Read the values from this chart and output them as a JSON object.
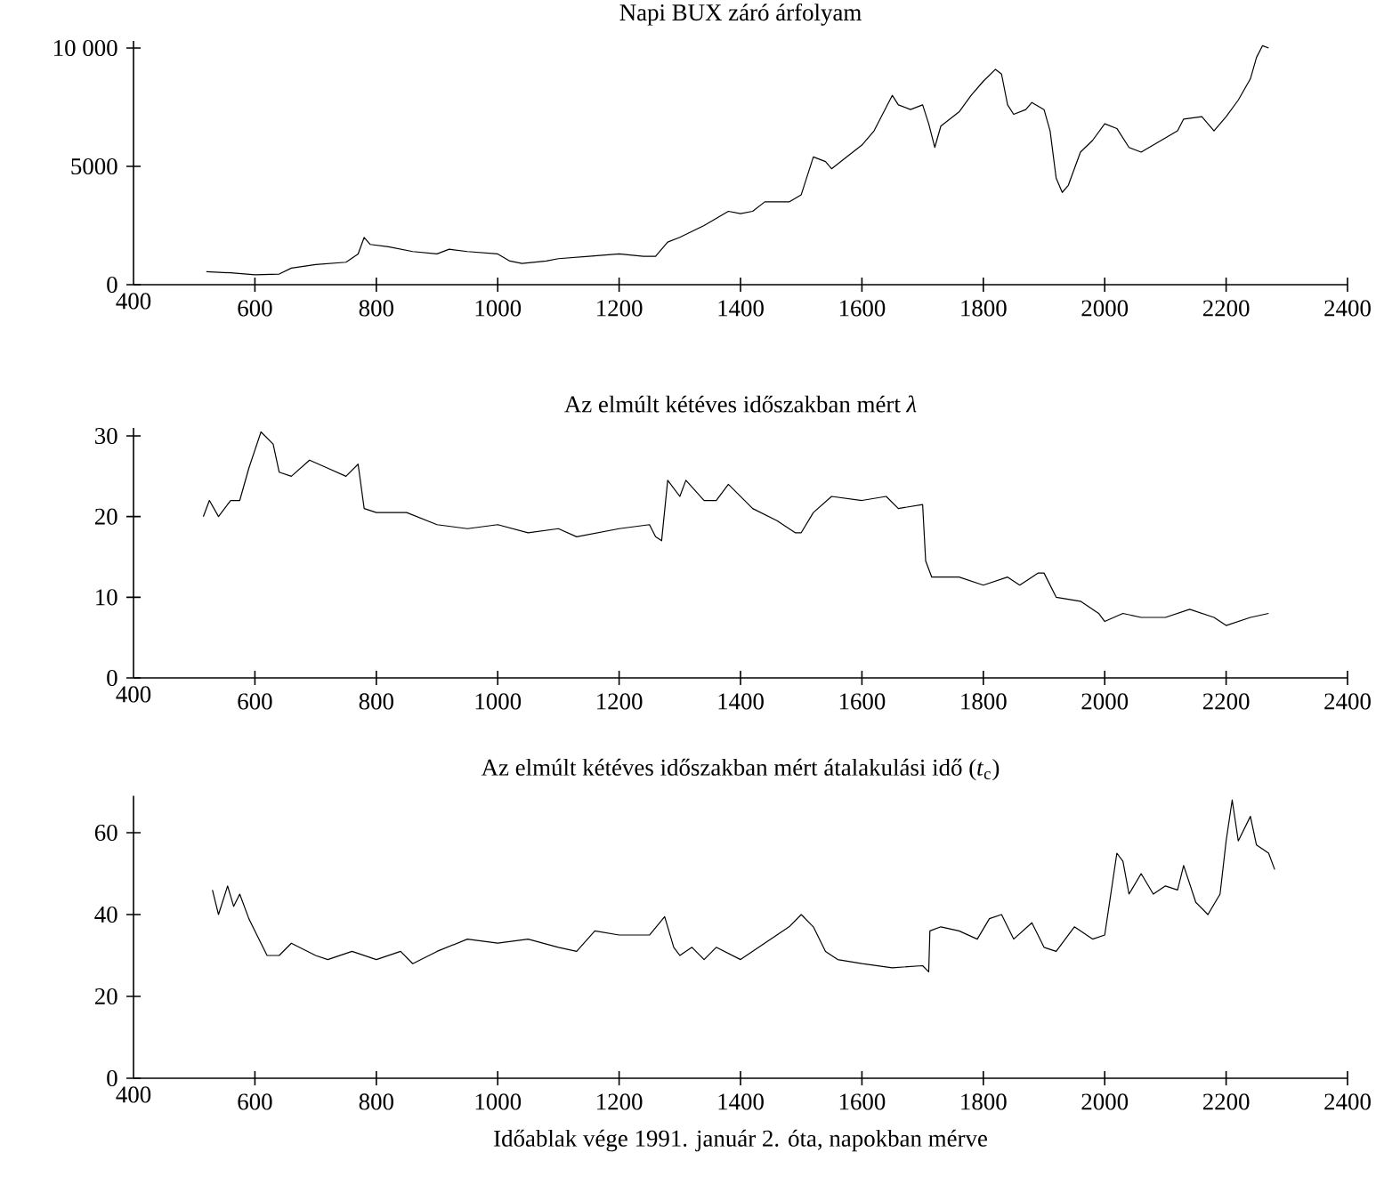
{
  "chart_data": [
    {
      "type": "line",
      "title": "Napi BUX záró árfolyam",
      "xlim": [
        400,
        2400
      ],
      "xticks": [
        400,
        600,
        800,
        1000,
        1200,
        1400,
        1600,
        1800,
        2000,
        2200,
        2400
      ],
      "ylim": [
        0,
        10300
      ],
      "yticks": [
        0,
        5000,
        {
          "value": 10000,
          "label": "10 000"
        }
      ],
      "series": [
        {
          "color": "#000000",
          "x": [
            520,
            560,
            600,
            640,
            660,
            700,
            750,
            770,
            780,
            790,
            820,
            860,
            900,
            920,
            950,
            1000,
            1020,
            1040,
            1080,
            1100,
            1150,
            1200,
            1240,
            1260,
            1280,
            1300,
            1340,
            1360,
            1380,
            1400,
            1420,
            1440,
            1480,
            1500,
            1510,
            1520,
            1540,
            1550,
            1570,
            1600,
            1620,
            1650,
            1660,
            1680,
            1700,
            1710,
            1720,
            1730,
            1760,
            1780,
            1800,
            1820,
            1830,
            1840,
            1850,
            1870,
            1880,
            1900,
            1910,
            1920,
            1930,
            1940,
            1960,
            1980,
            2000,
            2020,
            2040,
            2060,
            2080,
            2100,
            2120,
            2130,
            2160,
            2180,
            2200,
            2220,
            2240,
            2250,
            2260,
            2270
          ],
          "values": [
            550,
            500,
            420,
            450,
            700,
            850,
            950,
            1300,
            2000,
            1700,
            1600,
            1400,
            1300,
            1500,
            1400,
            1300,
            1000,
            900,
            1000,
            1100,
            1200,
            1300,
            1200,
            1200,
            1800,
            2000,
            2500,
            2800,
            3100,
            3000,
            3100,
            3500,
            3500,
            3800,
            4600,
            5400,
            5200,
            4900,
            5300,
            5900,
            6500,
            8000,
            7600,
            7400,
            7600,
            6800,
            5800,
            6700,
            7300,
            8000,
            8600,
            9100,
            8900,
            7600,
            7200,
            7400,
            7700,
            7400,
            6500,
            4500,
            3900,
            4200,
            5600,
            6100,
            6800,
            6600,
            5800,
            5600,
            5900,
            6200,
            6500,
            7000,
            7100,
            6500,
            7100,
            7800,
            8700,
            9600,
            10100,
            10000
          ]
        }
      ]
    },
    {
      "type": "line",
      "title": "Az elmúlt kétéves időszakban mért *λ*",
      "xlim": [
        400,
        2400
      ],
      "xticks": [
        400,
        600,
        800,
        1000,
        1200,
        1400,
        1600,
        1800,
        2000,
        2200,
        2400
      ],
      "ylim": [
        0,
        31
      ],
      "yticks": [
        0,
        10,
        20,
        30
      ],
      "series": [
        {
          "color": "#000000",
          "x": [
            515,
            525,
            540,
            560,
            575,
            590,
            610,
            630,
            640,
            660,
            690,
            720,
            750,
            770,
            780,
            800,
            850,
            900,
            950,
            1000,
            1050,
            1100,
            1130,
            1200,
            1250,
            1260,
            1270,
            1280,
            1300,
            1310,
            1340,
            1360,
            1380,
            1400,
            1420,
            1460,
            1490,
            1500,
            1520,
            1550,
            1600,
            1640,
            1660,
            1700,
            1705,
            1715,
            1760,
            1800,
            1840,
            1860,
            1890,
            1900,
            1920,
            1960,
            1990,
            2000,
            2030,
            2060,
            2100,
            2140,
            2180,
            2200,
            2240,
            2270
          ],
          "values": [
            20,
            22,
            20,
            22,
            22,
            26,
            30.5,
            29,
            25.5,
            25,
            27,
            26,
            25,
            26.5,
            21,
            20.5,
            20.5,
            19,
            18.5,
            19,
            18,
            18.5,
            17.5,
            18.5,
            19,
            17.5,
            17,
            24.5,
            22.5,
            24.5,
            22,
            22,
            24,
            22.5,
            21,
            19.5,
            18,
            18,
            20.5,
            22.5,
            22,
            22.5,
            21,
            21.5,
            14.5,
            12.5,
            12.5,
            11.5,
            12.5,
            11.5,
            13,
            13,
            10,
            9.5,
            8,
            7,
            8,
            7.5,
            7.5,
            8.5,
            7.5,
            6.5,
            7.5,
            8
          ]
        }
      ]
    },
    {
      "type": "line",
      "title": "Az elmúlt kétéves időszakban mért átalakulási idő (*t*$_{c}$)",
      "xlabel": "Időablak vége 1991. január 2. óta, napokban mérve",
      "xlim": [
        400,
        2400
      ],
      "xticks": [
        400,
        600,
        800,
        1000,
        1200,
        1400,
        1600,
        1800,
        2000,
        2200,
        2400
      ],
      "ylim": [
        0,
        69
      ],
      "yticks": [
        0,
        20,
        40,
        60
      ],
      "series": [
        {
          "color": "#000000",
          "x": [
            530,
            540,
            555,
            565,
            575,
            590,
            600,
            620,
            640,
            660,
            700,
            720,
            760,
            800,
            840,
            860,
            900,
            950,
            1000,
            1050,
            1100,
            1130,
            1160,
            1200,
            1250,
            1275,
            1290,
            1300,
            1320,
            1340,
            1360,
            1400,
            1440,
            1480,
            1500,
            1520,
            1540,
            1560,
            1600,
            1650,
            1700,
            1710,
            1712,
            1730,
            1760,
            1790,
            1810,
            1830,
            1850,
            1880,
            1900,
            1920,
            1950,
            1980,
            2000,
            2010,
            2020,
            2030,
            2040,
            2060,
            2080,
            2100,
            2120,
            2130,
            2150,
            2170,
            2190,
            2200,
            2210,
            2220,
            2240,
            2250,
            2270,
            2280
          ],
          "values": [
            46,
            40,
            47,
            42,
            45,
            39,
            36,
            30,
            30,
            33,
            30,
            29,
            31,
            29,
            31,
            28,
            31,
            34,
            33,
            34,
            32,
            31,
            36,
            35,
            35,
            39.5,
            32,
            30,
            32,
            29,
            32,
            29,
            33,
            37,
            40,
            37,
            31,
            29,
            28,
            27,
            27.5,
            26,
            36,
            37,
            36,
            34,
            39,
            40,
            34,
            38,
            32,
            31,
            37,
            34,
            35,
            45,
            55,
            53,
            45,
            50,
            45,
            47,
            46,
            52,
            43,
            40,
            45,
            58,
            68,
            58,
            64,
            57,
            55,
            51
          ]
        }
      ]
    }
  ]
}
